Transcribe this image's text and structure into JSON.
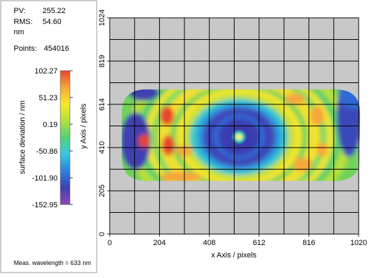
{
  "stats": {
    "pv_label": "PV:",
    "pv_value": "255.22",
    "rms_label": "RMS:",
    "rms_value": "54.60",
    "unit": "nm",
    "points_label": "Points:",
    "points_value": "454016"
  },
  "footer": {
    "wavelength": "Meas. wavelength = 633 nm"
  },
  "chart_data": {
    "type": "heatmap",
    "xlabel": "x Axis / pixels",
    "ylabel": "y Axis / pixels",
    "x_ticks": [
      0,
      204,
      408,
      612,
      816,
      1020
    ],
    "y_ticks": [
      0,
      205,
      410,
      614,
      819,
      1024
    ],
    "xlim": [
      0,
      1020
    ],
    "ylim": [
      0,
      1024
    ],
    "grid": true,
    "grid_divisions": 10,
    "data_region": {
      "x": [
        55,
        1020
      ],
      "y": [
        252,
        685
      ]
    },
    "colorbar": {
      "label": "surface deviation / nm",
      "ticks": [
        102.27,
        51.23,
        0.19,
        -50.86,
        -101.9,
        -152.95
      ],
      "tick_labels": [
        "102.27",
        "51.23",
        "0.19",
        "-50.86",
        "-101.90",
        "-152.95"
      ],
      "min": -152.95,
      "max": 102.27,
      "colors": [
        "#8e4bb0",
        "#3f3fb0",
        "#2e7fe0",
        "#35c8e0",
        "#52d27a",
        "#b4e03a",
        "#f5ea2a",
        "#f6a63a",
        "#e8452c"
      ]
    },
    "features": [
      {
        "name": "central depression",
        "x": 530,
        "y": 460,
        "value": -152.95
      },
      {
        "name": "central peak",
        "x": 530,
        "y": 460,
        "value": 30
      }
    ],
    "colors": {
      "background": "#c8c8c8",
      "grid": "#000000"
    }
  }
}
